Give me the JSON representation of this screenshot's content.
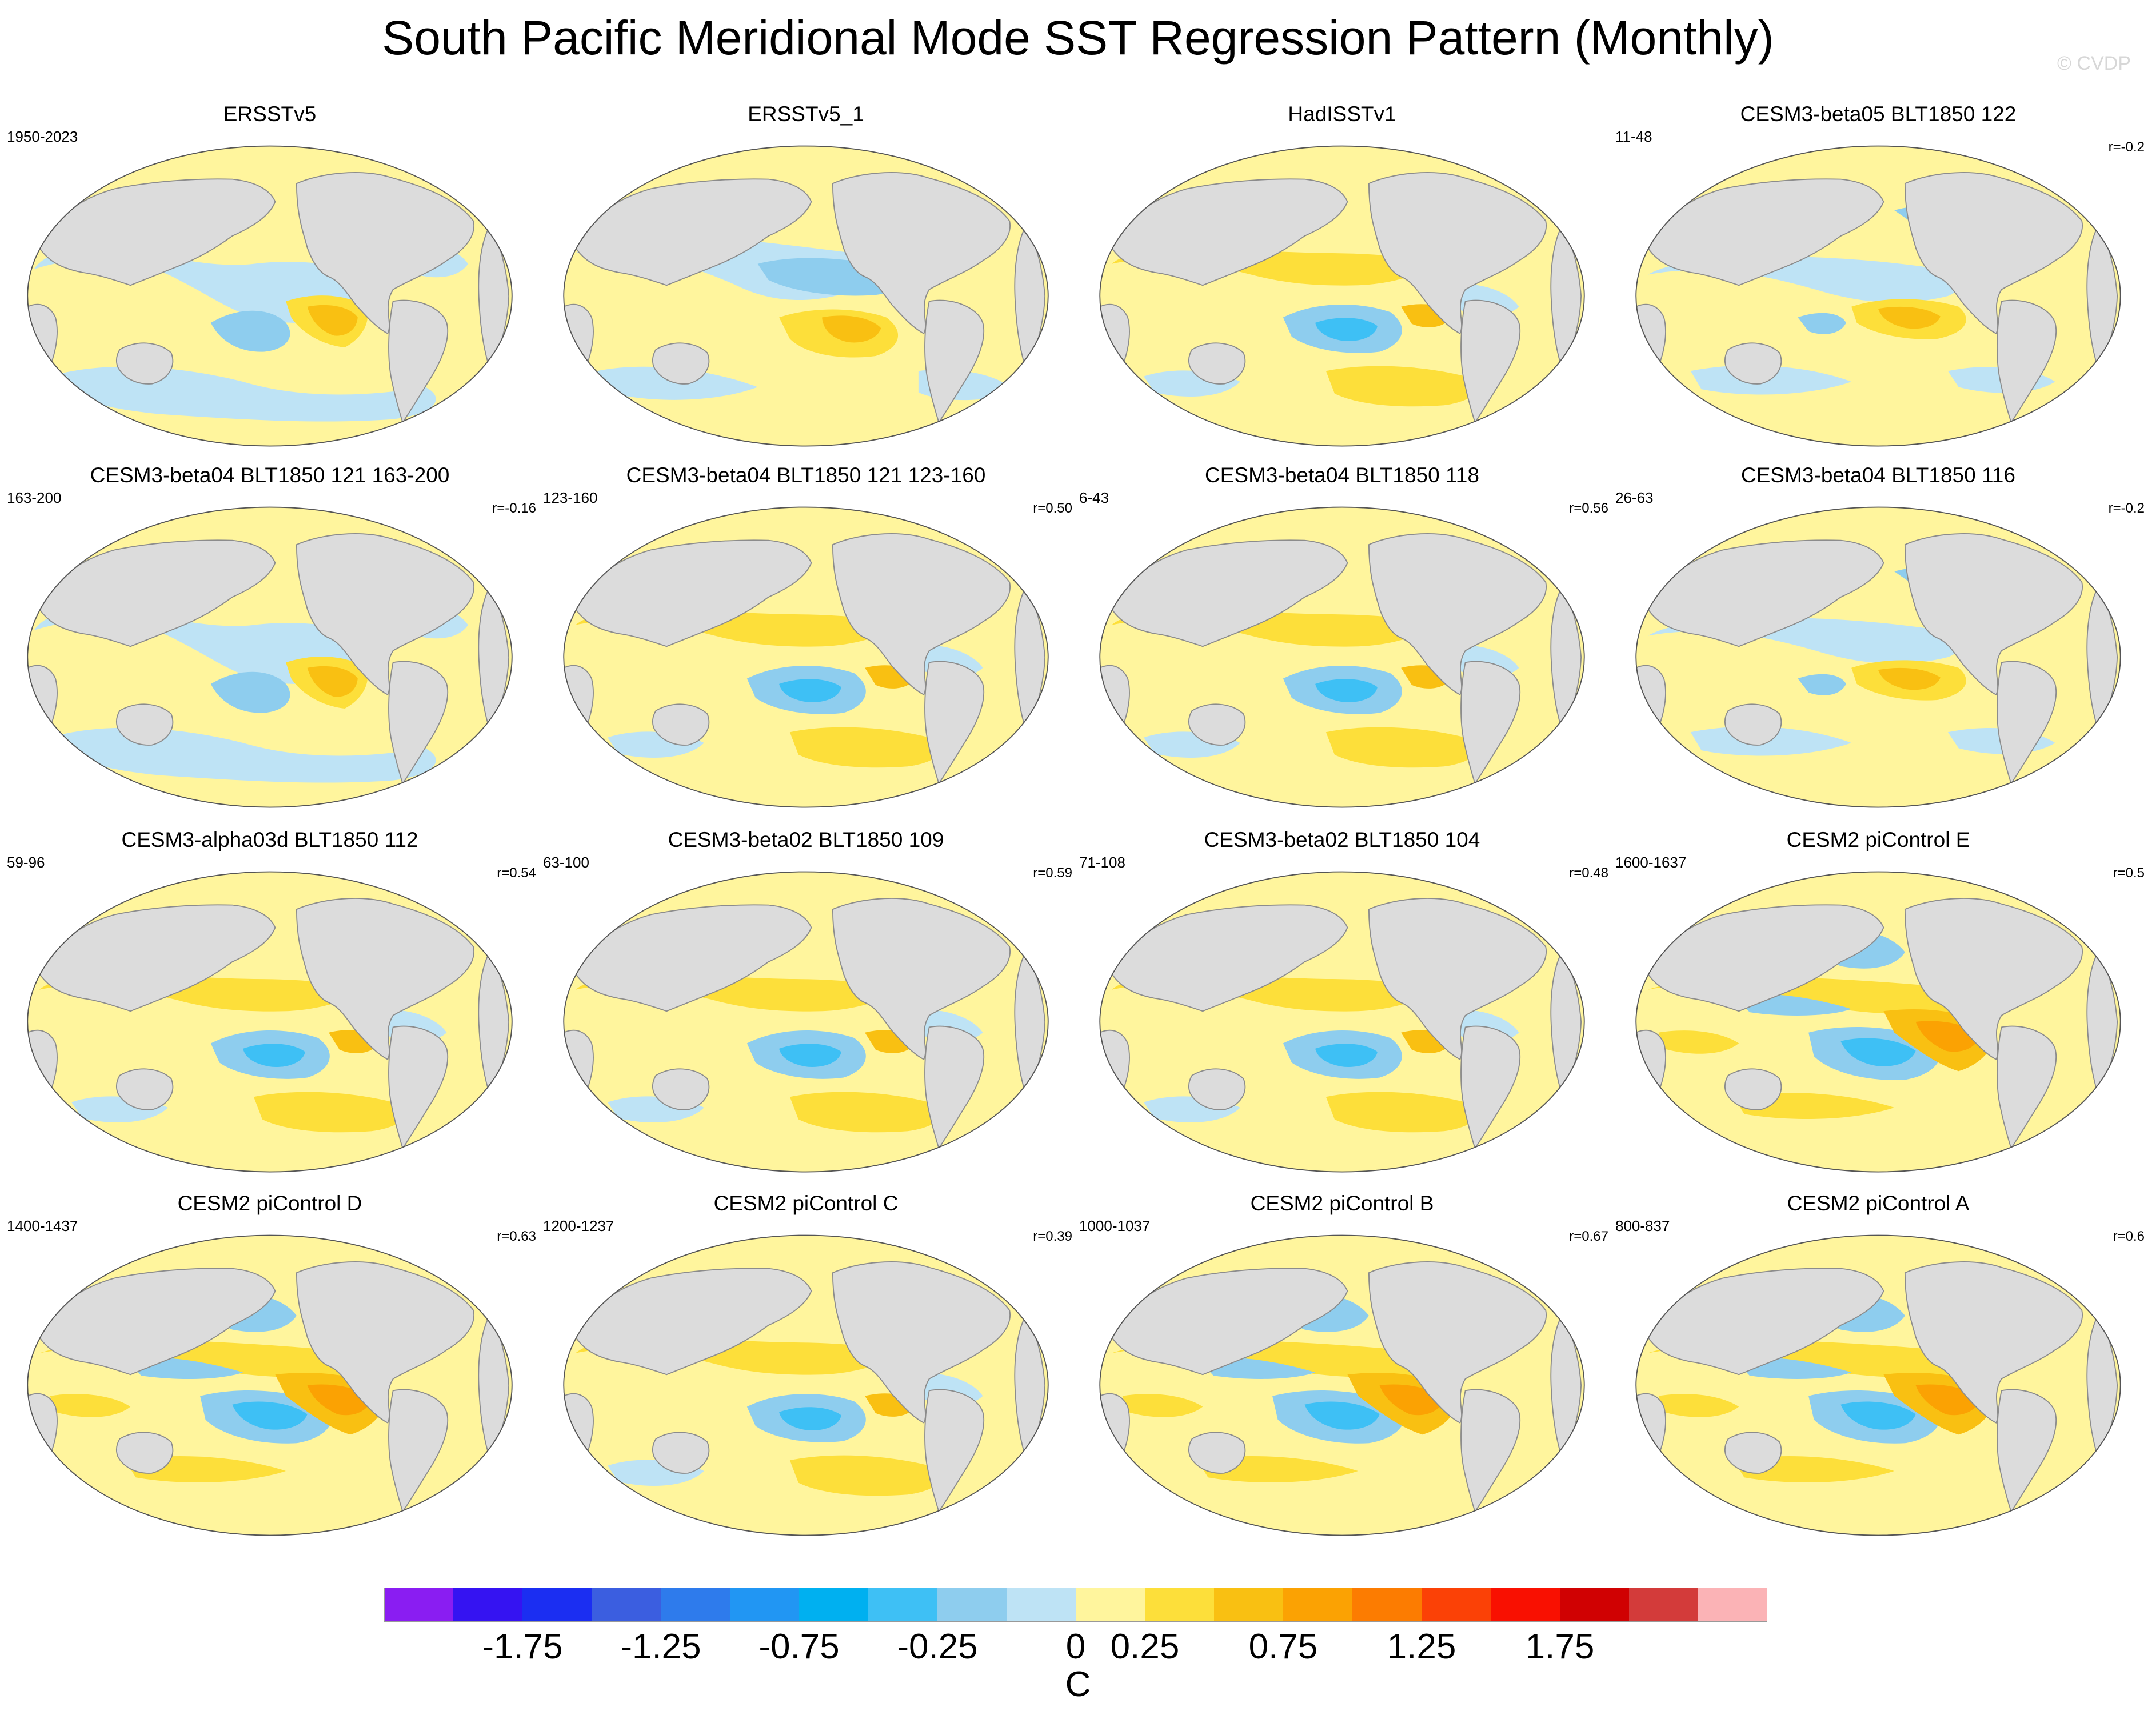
{
  "title": "South Pacific Meridional Mode SST Regression Pattern (Monthly)",
  "watermark": "© CVDP",
  "colors": {
    "land": "#dcdcdc",
    "coast": "#8c8c8c",
    "ocean_default": "#fff59d"
  },
  "panels": [
    {
      "title": "ERSSTv5",
      "years": "1950-2023",
      "r": "",
      "pattern": "A"
    },
    {
      "title": "ERSSTv5_1",
      "years": "",
      "r": "",
      "pattern": "B"
    },
    {
      "title": "HadISSTv1",
      "years": "",
      "r": "",
      "pattern": "C"
    },
    {
      "title": "CESM3-beta05 BLT1850 122",
      "years": "11-48",
      "r": "r=-0.2",
      "pattern": "D"
    },
    {
      "title": "CESM3-beta04 BLT1850 121 163-200",
      "years": "163-200",
      "r": "r=-0.16",
      "pattern": "A"
    },
    {
      "title": "CESM3-beta04 BLT1850 121 123-160",
      "years": "123-160",
      "r": "r=0.50",
      "pattern": "C"
    },
    {
      "title": "CESM3-beta04 BLT1850 118",
      "years": "6-43",
      "r": "r=0.56",
      "pattern": "C"
    },
    {
      "title": "CESM3-beta04 BLT1850 116",
      "years": "26-63",
      "r": "r=-0.2",
      "pattern": "D"
    },
    {
      "title": "CESM3-alpha03d BLT1850 112",
      "years": "59-96",
      "r": "r=0.54",
      "pattern": "C"
    },
    {
      "title": "CESM3-beta02 BLT1850 109",
      "years": "63-100",
      "r": "r=0.59",
      "pattern": "C"
    },
    {
      "title": "CESM3-beta02 BLT1850 104",
      "years": "71-108",
      "r": "r=0.48",
      "pattern": "C"
    },
    {
      "title": "CESM2 piControl E",
      "years": "1600-1637",
      "r": "r=0.5",
      "pattern": "E"
    },
    {
      "title": "CESM2 piControl D",
      "years": "1400-1437",
      "r": "r=0.63",
      "pattern": "E"
    },
    {
      "title": "CESM2 piControl C",
      "years": "1200-1237",
      "r": "r=0.39",
      "pattern": "C"
    },
    {
      "title": "CESM2 piControl B",
      "years": "1000-1037",
      "r": "r=0.67",
      "pattern": "E"
    },
    {
      "title": "CESM2 piControl A",
      "years": "800-837",
      "r": "r=0.6",
      "pattern": "E"
    }
  ],
  "colorbar": {
    "colors": [
      "#8a1df2",
      "#3513f2",
      "#1b2ef2",
      "#3b5ee0",
      "#2e7bec",
      "#2196f3",
      "#00b0f0",
      "#3ec0f5",
      "#8ecdee",
      "#bee3f5",
      "#fff59d",
      "#fddf3a",
      "#f9c012",
      "#fba203",
      "#fc7c01",
      "#fb4106",
      "#f91001",
      "#d00102",
      "#d33b3a",
      "#fbb3b6"
    ],
    "tick_labels": [
      "-1.75",
      "-1.25",
      "-0.75",
      "-0.25",
      "0",
      "0.25",
      "0.75",
      "1.25",
      "1.75"
    ],
    "tick_boundaries": [
      2,
      4,
      6,
      8,
      10,
      11,
      13,
      15,
      17
    ],
    "units": "C"
  }
}
